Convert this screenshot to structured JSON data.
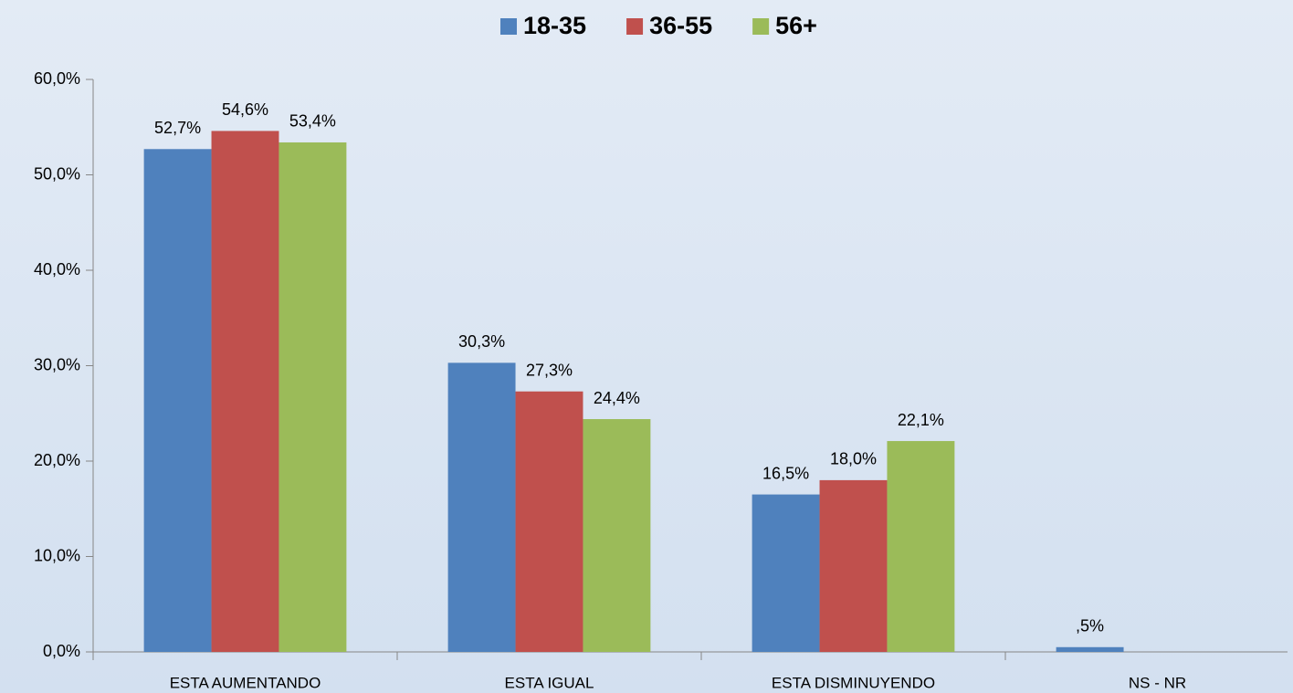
{
  "chart_data": {
    "type": "bar",
    "categories": [
      "ESTA  AUMENTANDO",
      "ESTA  IGUAL",
      "ESTA  DISMINUYENDO",
      "NS - NR"
    ],
    "series": [
      {
        "name": "18-35",
        "color": "#4f81bd",
        "values": [
          52.7,
          30.3,
          16.5,
          0.5
        ],
        "value_labels": [
          "52,7%",
          "30,3%",
          "16,5%",
          ",5%"
        ]
      },
      {
        "name": "36-55",
        "color": "#c0504d",
        "values": [
          54.6,
          27.3,
          18.0,
          null
        ],
        "value_labels": [
          "54,6%",
          "27,3%",
          "18,0%",
          null
        ]
      },
      {
        "name": "56+",
        "color": "#9bbb59",
        "values": [
          53.4,
          24.4,
          22.1,
          null
        ],
        "value_labels": [
          "53,4%",
          "24,4%",
          "22,1%",
          null
        ]
      }
    ],
    "ylim": [
      0,
      60
    ],
    "yticks": [
      {
        "value": 0,
        "label": "0,0%"
      },
      {
        "value": 10,
        "label": "10,0%"
      },
      {
        "value": 20,
        "label": "20,0%"
      },
      {
        "value": 30,
        "label": "30,0%"
      },
      {
        "value": 40,
        "label": "40,0%"
      },
      {
        "value": 50,
        "label": "50,0%"
      },
      {
        "value": 60,
        "label": "60,0%"
      }
    ],
    "legend": "top",
    "grid": false
  }
}
